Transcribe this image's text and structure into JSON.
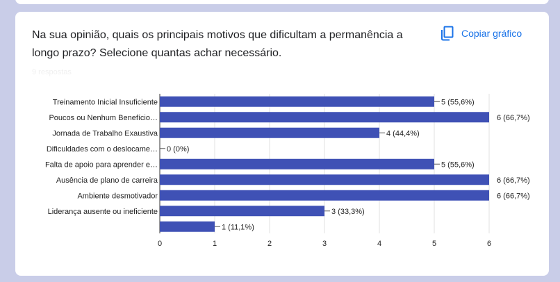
{
  "form": {
    "question": "Na sua opinião, quais os principais motivos que dificultam a permanência a longo prazo? Selecione quantas achar necessário.",
    "copy_chart_label": "Copiar gráfico",
    "copy_icon": "copy-icon",
    "response_count": "9 respostas"
  },
  "colors": {
    "bar": "#3f51b5",
    "background": "#c9cde8",
    "accent": "#1a73e8"
  },
  "chart_data": {
    "type": "bar",
    "orientation": "horizontal",
    "categories": [
      "Treinamento Inicial Insuficiente",
      "Poucos ou Nenhum Benefício…",
      "Jornada de Trabalho Exaustiva",
      "Dificuldades com o deslocame…",
      "Falta de apoio para aprender e…",
      "Ausência de plano de carreira",
      "Ambiente desmotivador",
      "Liderança ausente ou ineficiente",
      ""
    ],
    "values": [
      5,
      6,
      4,
      0,
      5,
      6,
      6,
      3,
      1
    ],
    "value_labels": [
      "5 (55,6%)",
      "6 (66,7%)",
      "4 (44,4%)",
      "0 (0%)",
      "5 (55,6%)",
      "6 (66,7%)",
      "6 (66,7%)",
      "3 (33,3%)",
      "1 (11,1%)"
    ],
    "xlim": [
      0,
      6
    ],
    "xticks": [
      "0",
      "1",
      "2",
      "3",
      "4",
      "5",
      "6"
    ],
    "grid": true,
    "legend": "none",
    "title": "",
    "xlabel": "",
    "ylabel": ""
  }
}
